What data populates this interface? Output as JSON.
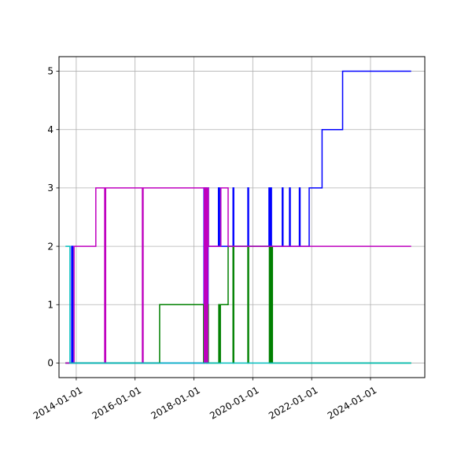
{
  "chart_data": {
    "type": "line",
    "title": "",
    "xlabel": "",
    "ylabel": "",
    "grid": true,
    "x_axis_type": "date",
    "xlim": [
      "2013-06-01",
      "2025-11-05"
    ],
    "ylim": [
      -0.25,
      5.25
    ],
    "x_ticks": [
      "2014-01-01",
      "2016-01-01",
      "2018-01-01",
      "2020-01-01",
      "2022-01-01",
      "2024-01-01"
    ],
    "y_ticks": [
      0,
      1,
      2,
      3,
      4,
      5
    ],
    "series": [
      {
        "color": "#0000ff",
        "points": [
          [
            "2013-08-20",
            0
          ],
          [
            "2013-11-05",
            0
          ],
          [
            "2013-11-05",
            2
          ],
          [
            "2013-11-20",
            2
          ],
          [
            "2013-11-20",
            0
          ],
          [
            "2018-05-05",
            0
          ],
          [
            "2018-05-05",
            3
          ],
          [
            "2018-06-05",
            3
          ],
          [
            "2018-06-05",
            0
          ],
          [
            "2018-06-25",
            0
          ],
          [
            "2018-06-25",
            3
          ],
          [
            "2018-06-30",
            3
          ],
          [
            "2018-06-30",
            2
          ],
          [
            "2018-11-01",
            2
          ],
          [
            "2018-11-01",
            3
          ],
          [
            "2018-11-15",
            3
          ],
          [
            "2018-11-15",
            2
          ],
          [
            "2019-05-01",
            2
          ],
          [
            "2019-05-01",
            3
          ],
          [
            "2019-05-10",
            3
          ],
          [
            "2019-05-10",
            2
          ],
          [
            "2019-11-01",
            2
          ],
          [
            "2019-11-01",
            3
          ],
          [
            "2019-11-10",
            3
          ],
          [
            "2019-11-10",
            2
          ],
          [
            "2020-07-20",
            2
          ],
          [
            "2020-07-20",
            3
          ],
          [
            "2020-08-01",
            3
          ],
          [
            "2020-08-01",
            2
          ],
          [
            "2020-08-10",
            2
          ],
          [
            "2020-08-10",
            3
          ],
          [
            "2020-08-20",
            3
          ],
          [
            "2020-08-20",
            2
          ],
          [
            "2021-01-01",
            2
          ],
          [
            "2021-01-01",
            3
          ],
          [
            "2021-01-10",
            3
          ],
          [
            "2021-01-10",
            2
          ],
          [
            "2021-04-01",
            2
          ],
          [
            "2021-04-01",
            3
          ],
          [
            "2021-04-10",
            3
          ],
          [
            "2021-04-10",
            2
          ],
          [
            "2021-08-01",
            2
          ],
          [
            "2021-08-01",
            3
          ],
          [
            "2021-08-10",
            3
          ],
          [
            "2021-08-10",
            2
          ],
          [
            "2021-12-01",
            2
          ],
          [
            "2021-12-01",
            3
          ],
          [
            "2022-05-10",
            3
          ],
          [
            "2022-05-10",
            4
          ],
          [
            "2023-01-20",
            4
          ],
          [
            "2023-01-20",
            5
          ],
          [
            "2025-05-20",
            5
          ]
        ]
      },
      {
        "color": "#008000",
        "points": [
          [
            "2013-08-20",
            0
          ],
          [
            "2016-11-01",
            0
          ],
          [
            "2016-11-01",
            1
          ],
          [
            "2018-05-01",
            1
          ],
          [
            "2018-05-01",
            0
          ],
          [
            "2018-05-10",
            0
          ],
          [
            "2018-05-10",
            1
          ],
          [
            "2018-06-10",
            1
          ],
          [
            "2018-06-10",
            0
          ],
          [
            "2018-06-20",
            0
          ],
          [
            "2018-06-20",
            1
          ],
          [
            "2018-06-28",
            1
          ],
          [
            "2018-06-28",
            0
          ],
          [
            "2018-11-05",
            0
          ],
          [
            "2018-11-05",
            1
          ],
          [
            "2018-11-20",
            1
          ],
          [
            "2018-11-20",
            0
          ],
          [
            "2018-11-25",
            0
          ],
          [
            "2018-11-25",
            1
          ],
          [
            "2019-03-01",
            1
          ],
          [
            "2019-03-01",
            2
          ],
          [
            "2019-05-01",
            2
          ],
          [
            "2019-05-01",
            0
          ],
          [
            "2019-05-10",
            0
          ],
          [
            "2019-05-10",
            2
          ],
          [
            "2019-11-01",
            2
          ],
          [
            "2019-11-01",
            0
          ],
          [
            "2019-11-10",
            0
          ],
          [
            "2019-11-10",
            2
          ],
          [
            "2020-07-25",
            2
          ],
          [
            "2020-07-25",
            0
          ],
          [
            "2020-08-01",
            0
          ],
          [
            "2020-08-01",
            2
          ],
          [
            "2020-08-10",
            2
          ],
          [
            "2020-08-10",
            0
          ],
          [
            "2020-08-15",
            0
          ],
          [
            "2020-08-15",
            2
          ],
          [
            "2020-08-20",
            2
          ],
          [
            "2020-08-20",
            0
          ],
          [
            "2020-08-25",
            0
          ],
          [
            "2020-08-25",
            2
          ],
          [
            "2020-09-01",
            2
          ],
          [
            "2020-09-01",
            0
          ],
          [
            "2025-05-20",
            0
          ]
        ]
      },
      {
        "color": "#bf00bf",
        "points": [
          [
            "2013-08-20",
            0
          ],
          [
            "2013-12-05",
            0
          ],
          [
            "2013-12-05",
            2
          ],
          [
            "2014-09-01",
            2
          ],
          [
            "2014-09-01",
            3
          ],
          [
            "2014-12-20",
            3
          ],
          [
            "2014-12-20",
            0
          ],
          [
            "2015-01-01",
            0
          ],
          [
            "2015-01-01",
            3
          ],
          [
            "2016-04-01",
            3
          ],
          [
            "2016-04-01",
            0
          ],
          [
            "2016-04-10",
            0
          ],
          [
            "2016-04-10",
            3
          ],
          [
            "2018-05-10",
            3
          ],
          [
            "2018-05-10",
            0
          ],
          [
            "2018-05-15",
            0
          ],
          [
            "2018-05-15",
            3
          ],
          [
            "2018-05-25",
            3
          ],
          [
            "2018-05-25",
            0
          ],
          [
            "2018-06-01",
            0
          ],
          [
            "2018-06-01",
            3
          ],
          [
            "2018-06-10",
            3
          ],
          [
            "2018-06-10",
            0
          ],
          [
            "2018-06-20",
            0
          ],
          [
            "2018-06-20",
            3
          ],
          [
            "2018-06-28",
            3
          ],
          [
            "2018-06-28",
            2
          ],
          [
            "2018-12-01",
            2
          ],
          [
            "2018-12-01",
            3
          ],
          [
            "2019-03-01",
            3
          ],
          [
            "2019-03-01",
            2
          ],
          [
            "2025-05-20",
            2
          ]
        ]
      },
      {
        "color": "#00bfbf",
        "points": [
          [
            "2013-08-20",
            2
          ],
          [
            "2013-10-15",
            2
          ],
          [
            "2013-10-15",
            0
          ],
          [
            "2025-05-20",
            0
          ]
        ]
      }
    ]
  }
}
